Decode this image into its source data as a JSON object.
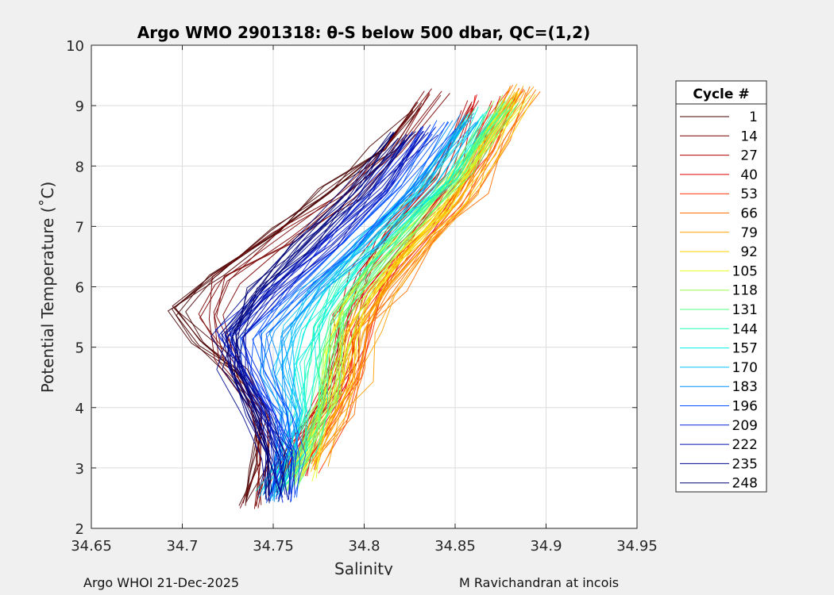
{
  "chart_data": {
    "type": "line",
    "title": "Argo WMO 2901318: θ-S below 500 dbar,  QC=(1,2)",
    "xlabel": "Salinity",
    "ylabel": "Potential Temperature (˚C)",
    "xlim": [
      34.65,
      34.95
    ],
    "ylim": [
      2,
      10
    ],
    "xticks": [
      "34.65",
      "34.7",
      "34.75",
      "34.8",
      "34.85",
      "34.9",
      "34.95"
    ],
    "yticks": [
      "2",
      "3",
      "4",
      "5",
      "6",
      "7",
      "8",
      "9",
      "10"
    ],
    "grid": true,
    "legend": {
      "title": "Cycle #",
      "placement": "outside-right"
    },
    "series": [
      {
        "name": "1",
        "color": "#4a0000",
        "salinity": [
          34.735,
          34.74,
          34.745,
          34.73,
          34.71,
          34.695,
          34.72,
          34.75,
          34.78,
          34.81,
          34.83
        ],
        "theta": [
          2.4,
          3.0,
          3.8,
          4.6,
          5.1,
          5.6,
          6.2,
          6.9,
          7.6,
          8.3,
          9.0
        ]
      },
      {
        "name": "14",
        "color": "#7a0000",
        "salinity": [
          34.74,
          34.745,
          34.74,
          34.725,
          34.715,
          34.725,
          34.755,
          34.79,
          34.815,
          34.84
        ],
        "theta": [
          2.4,
          3.1,
          4.0,
          4.8,
          5.5,
          6.1,
          6.8,
          7.5,
          8.2,
          9.2
        ]
      },
      {
        "name": "27",
        "color": "#b00000",
        "salinity": [
          34.755,
          34.765,
          34.78,
          34.79,
          34.79,
          34.8,
          34.815,
          34.84,
          34.86
        ],
        "theta": [
          2.8,
          3.4,
          4.1,
          4.8,
          5.5,
          6.2,
          6.9,
          7.8,
          9.0
        ]
      },
      {
        "name": "40",
        "color": "#e00000",
        "salinity": [
          34.76,
          34.77,
          34.785,
          34.79,
          34.795,
          34.81,
          34.83,
          34.855,
          34.87
        ],
        "theta": [
          2.9,
          3.6,
          4.3,
          5.0,
          5.6,
          6.3,
          7.0,
          8.0,
          9.1
        ]
      },
      {
        "name": "53",
        "color": "#ff3000",
        "salinity": [
          34.765,
          34.78,
          34.79,
          34.795,
          34.805,
          34.82,
          34.845,
          34.865,
          34.88
        ],
        "theta": [
          3.0,
          3.8,
          4.5,
          5.2,
          5.9,
          6.6,
          7.4,
          8.3,
          9.2
        ]
      },
      {
        "name": "66",
        "color": "#ff7000",
        "salinity": [
          34.77,
          34.785,
          34.795,
          34.8,
          34.815,
          34.835,
          34.86,
          34.875,
          34.89
        ],
        "theta": [
          3.1,
          3.9,
          4.6,
          5.3,
          6.0,
          6.8,
          7.6,
          8.5,
          9.3
        ]
      },
      {
        "name": "79",
        "color": "#ffa000",
        "salinity": [
          34.77,
          34.785,
          34.795,
          34.8,
          34.81,
          34.83,
          34.855,
          34.87,
          34.885
        ],
        "theta": [
          3.0,
          3.8,
          4.5,
          5.2,
          5.9,
          6.7,
          7.5,
          8.4,
          9.3
        ]
      },
      {
        "name": "92",
        "color": "#ffd000",
        "salinity": [
          34.765,
          34.775,
          34.785,
          34.79,
          34.8,
          34.82,
          34.845,
          34.865,
          34.885
        ],
        "theta": [
          2.9,
          3.7,
          4.4,
          5.1,
          5.8,
          6.5,
          7.3,
          8.2,
          9.2
        ]
      },
      {
        "name": "105",
        "color": "#e8ff20",
        "salinity": [
          34.765,
          34.775,
          34.782,
          34.787,
          34.795,
          34.812,
          34.838,
          34.86,
          34.882
        ],
        "theta": [
          2.8,
          3.6,
          4.3,
          5.0,
          5.7,
          6.4,
          7.2,
          8.1,
          9.1
        ]
      },
      {
        "name": "118",
        "color": "#a0ff50",
        "salinity": [
          34.76,
          34.772,
          34.78,
          34.783,
          34.79,
          34.805,
          34.83,
          34.855,
          34.88
        ],
        "theta": [
          2.7,
          3.5,
          4.2,
          4.9,
          5.6,
          6.3,
          7.1,
          8.0,
          9.1
        ]
      },
      {
        "name": "131",
        "color": "#50ff80",
        "salinity": [
          34.755,
          34.768,
          34.776,
          34.778,
          34.785,
          34.798,
          34.822,
          34.85,
          34.875
        ],
        "theta": [
          2.7,
          3.4,
          4.1,
          4.8,
          5.5,
          6.2,
          7.0,
          7.9,
          9.0
        ]
      },
      {
        "name": "144",
        "color": "#20ffb0",
        "salinity": [
          34.752,
          34.765,
          34.772,
          34.772,
          34.778,
          34.79,
          34.815,
          34.845,
          34.87
        ],
        "theta": [
          2.6,
          3.3,
          4.0,
          4.7,
          5.4,
          6.1,
          6.9,
          7.8,
          8.9
        ]
      },
      {
        "name": "157",
        "color": "#00f0e0",
        "salinity": [
          34.75,
          34.762,
          34.768,
          34.765,
          34.772,
          34.785,
          34.81,
          34.84,
          34.865
        ],
        "theta": [
          2.6,
          3.3,
          4.0,
          4.7,
          5.3,
          6.0,
          6.8,
          7.7,
          8.9
        ]
      },
      {
        "name": "170",
        "color": "#00c0ff",
        "salinity": [
          34.75,
          34.758,
          34.762,
          34.758,
          34.762,
          34.778,
          34.805,
          34.835,
          34.86
        ],
        "theta": [
          2.5,
          3.2,
          3.9,
          4.6,
          5.3,
          6.0,
          6.8,
          7.7,
          8.8
        ]
      },
      {
        "name": "183",
        "color": "#0090ff",
        "salinity": [
          34.752,
          34.758,
          34.758,
          34.75,
          34.75,
          34.77,
          34.8,
          34.83,
          34.855
        ],
        "theta": [
          2.5,
          3.2,
          3.9,
          4.6,
          5.2,
          5.9,
          6.7,
          7.6,
          8.8
        ]
      },
      {
        "name": "196",
        "color": "#0050ff",
        "salinity": [
          34.755,
          34.76,
          34.755,
          34.742,
          34.738,
          34.76,
          34.79,
          34.82,
          34.845
        ],
        "theta": [
          2.5,
          3.2,
          3.9,
          4.6,
          5.2,
          5.9,
          6.7,
          7.6,
          8.7
        ]
      },
      {
        "name": "209",
        "color": "#0020e0",
        "salinity": [
          34.755,
          34.758,
          34.75,
          34.735,
          34.728,
          34.75,
          34.78,
          34.81,
          34.835
        ],
        "theta": [
          2.5,
          3.2,
          3.9,
          4.6,
          5.2,
          5.9,
          6.7,
          7.6,
          8.6
        ]
      },
      {
        "name": "222",
        "color": "#0010b0",
        "salinity": [
          34.752,
          34.752,
          34.742,
          34.728,
          34.725,
          34.745,
          34.775,
          34.805,
          34.83
        ],
        "theta": [
          2.5,
          3.2,
          3.9,
          4.6,
          5.2,
          5.9,
          6.7,
          7.6,
          8.6
        ]
      },
      {
        "name": "235",
        "color": "#000a90",
        "salinity": [
          34.75,
          34.75,
          34.74,
          34.728,
          34.725,
          34.742,
          34.77,
          34.8,
          34.825
        ],
        "theta": [
          2.5,
          3.2,
          3.9,
          4.6,
          5.2,
          5.9,
          6.7,
          7.6,
          8.5
        ]
      },
      {
        "name": "248",
        "color": "#000070",
        "salinity": [
          34.748,
          34.748,
          34.74,
          34.73,
          34.728,
          34.74,
          34.765,
          34.795,
          34.82
        ],
        "theta": [
          2.5,
          3.2,
          3.9,
          4.6,
          5.2,
          5.9,
          6.7,
          7.6,
          8.5
        ]
      }
    ]
  },
  "footer": {
    "left": "Argo WHOI 21-Dec-2025",
    "right": "M Ravichandran at incois"
  }
}
